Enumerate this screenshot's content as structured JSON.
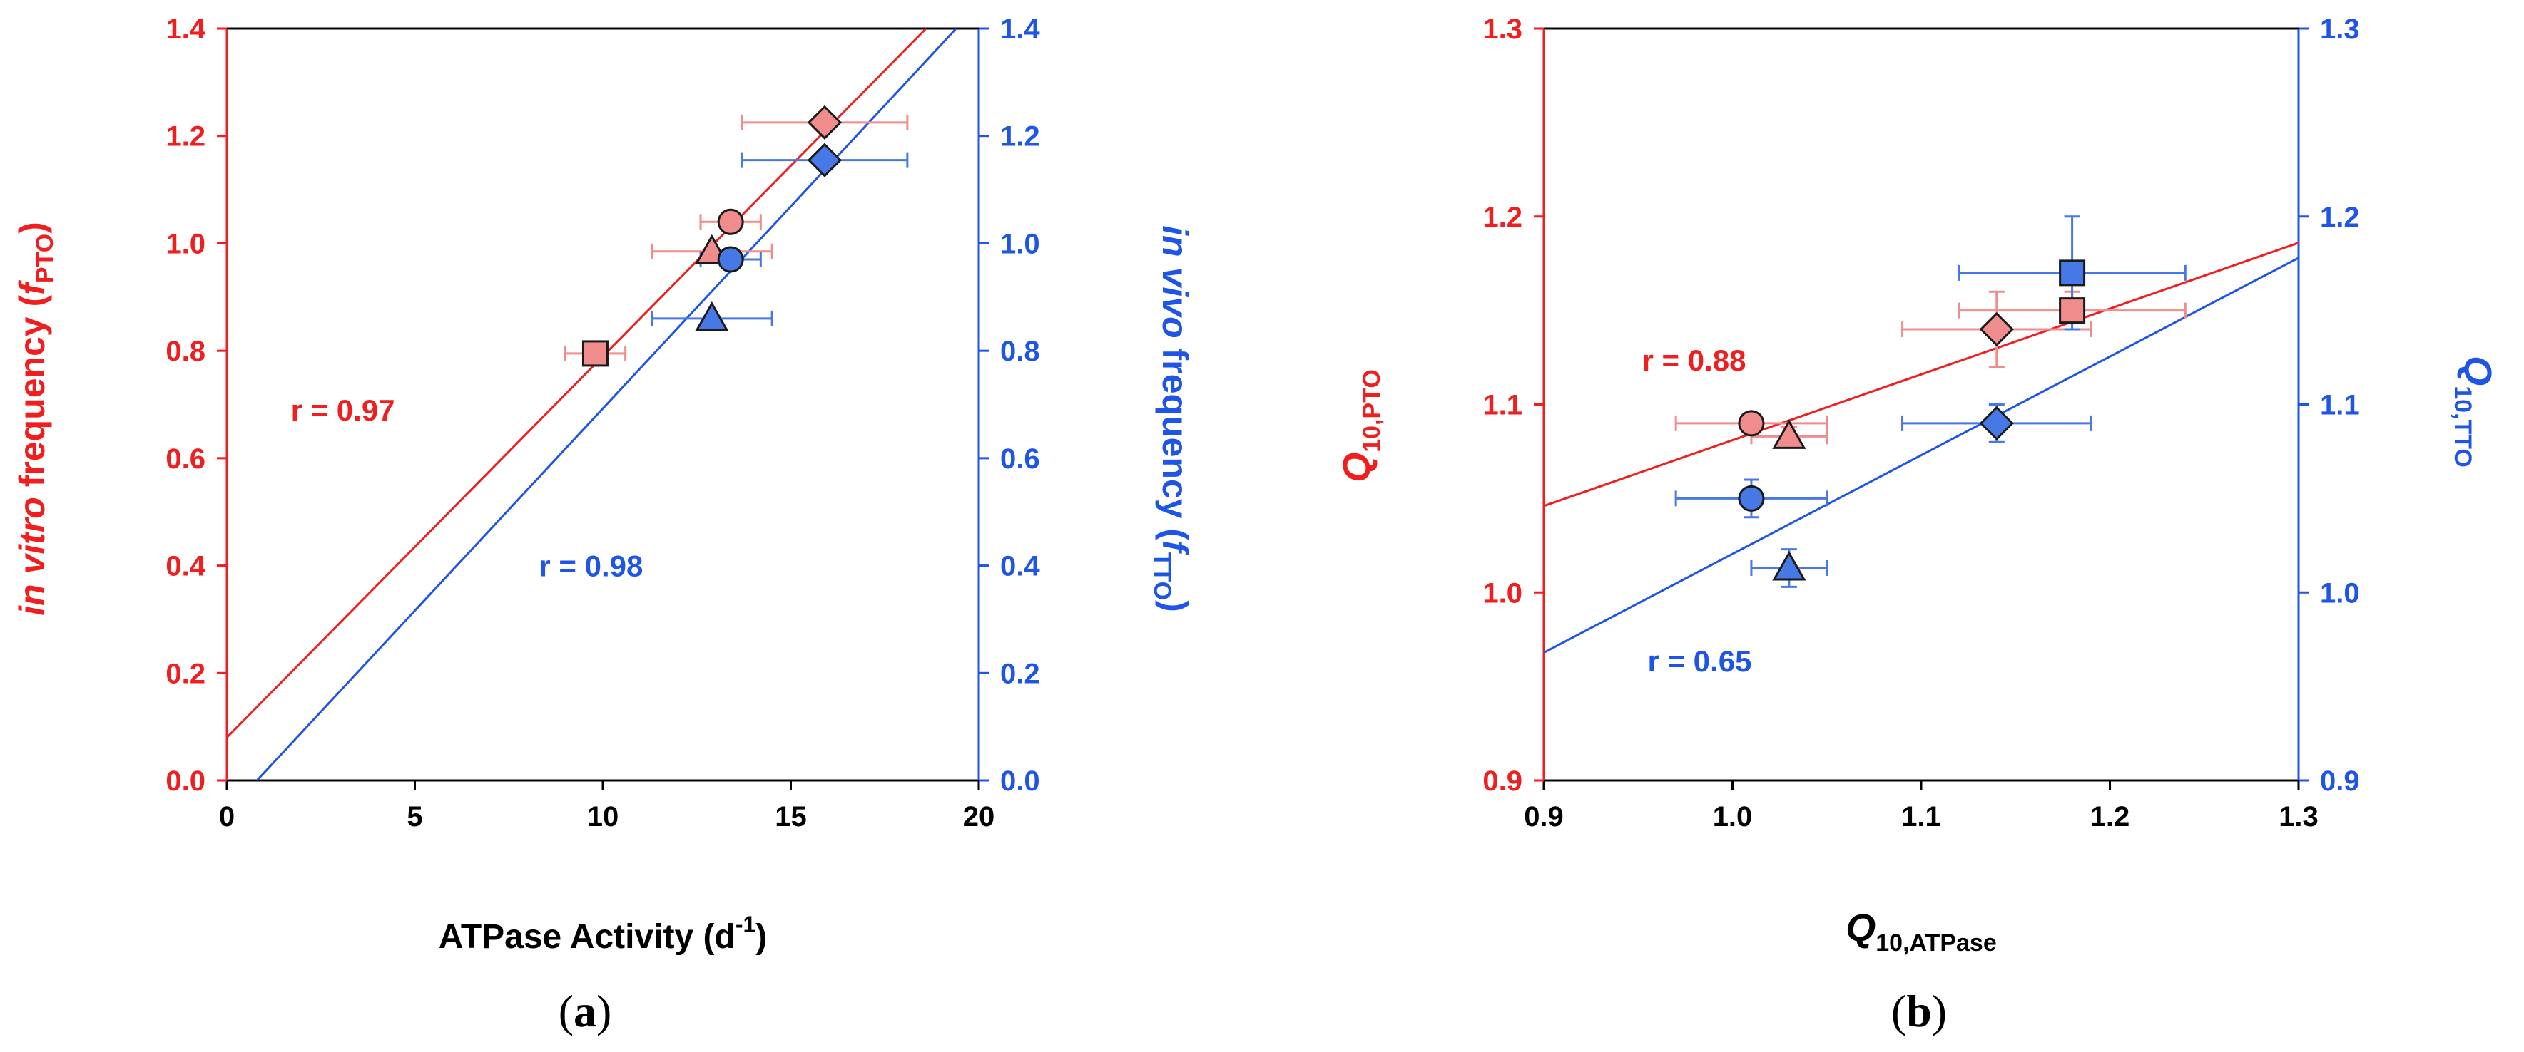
{
  "colors": {
    "red": "#f01e1e",
    "blue": "#1e55e6",
    "red_fill": "#f08c8c",
    "blue_fill": "#4678e6",
    "axis_black": "#000000"
  },
  "chart_data": [
    {
      "type": "scatter",
      "panel_label": "(a)",
      "panel_label_parts": [
        "(",
        "a",
        ")"
      ],
      "xlabel": "ATPase Activity (d",
      "xlabel_superscript": "-1",
      "xlabel_close": ")",
      "ylabel_left_parts": [
        "in vitro",
        " frequency (",
        "f",
        "PTO",
        ")"
      ],
      "ylabel_right_parts": [
        "in vivo",
        " frequency (",
        "f",
        "TTO",
        ")"
      ],
      "xlim": [
        0,
        20
      ],
      "ylim_left": [
        0.0,
        1.4
      ],
      "ylim_right": [
        0.0,
        1.4
      ],
      "x_ticks": [
        0,
        5,
        10,
        15,
        20
      ],
      "x_tick_labels": [
        "0",
        "5",
        "10",
        "15",
        "20"
      ],
      "y_ticks": [
        0.0,
        0.2,
        0.4,
        0.6,
        0.8,
        1.0,
        1.2,
        1.4
      ],
      "y_tick_labels": [
        "0.0",
        "0.2",
        "0.4",
        "0.6",
        "0.8",
        "1.0",
        "1.2",
        "1.4"
      ],
      "series": [
        {
          "name": "in vitro (PTO)",
          "color": "red",
          "points": [
            {
              "marker": "square",
              "x": 9.8,
              "y": 0.795,
              "xerr": 0.8,
              "yerr": 0
            },
            {
              "marker": "triangle",
              "x": 12.9,
              "y": 0.985,
              "xerr": 1.6,
              "yerr": 0
            },
            {
              "marker": "circle",
              "x": 13.4,
              "y": 1.04,
              "xerr": 0.8,
              "yerr": 0
            },
            {
              "marker": "diamond",
              "x": 15.9,
              "y": 1.225,
              "xerr": 2.2,
              "yerr": 0
            }
          ],
          "fit": {
            "x0": 0,
            "y0": 0.08,
            "x1": 18.6,
            "y1": 1.4
          },
          "r_label": "r = 0.97",
          "r_label_pos": {
            "x": 1.7,
            "y": 0.67
          }
        },
        {
          "name": "in vivo (TTO)",
          "color": "blue",
          "points": [
            {
              "marker": "triangle",
              "x": 12.9,
              "y": 0.86,
              "xerr": 1.6,
              "yerr": 0
            },
            {
              "marker": "circle",
              "x": 13.4,
              "y": 0.97,
              "xerr": 0.8,
              "yerr": 0
            },
            {
              "marker": "diamond",
              "x": 15.9,
              "y": 1.155,
              "xerr": 2.2,
              "yerr": 0
            }
          ],
          "fit": {
            "x0": 0.8,
            "y0": 0.0,
            "x1": 19.4,
            "y1": 1.4
          },
          "r_label": "r = 0.98",
          "r_label_pos": {
            "x": 8.3,
            "y": 0.38
          }
        }
      ]
    },
    {
      "type": "scatter",
      "panel_label": "(b)",
      "panel_label_parts": [
        "(",
        "b",
        ")"
      ],
      "xlabel_parts": [
        "Q",
        "10,ATPase"
      ],
      "ylabel_left_parts": [
        "Q",
        "10,PTO"
      ],
      "ylabel_right_parts": [
        "Q",
        "10,TTO"
      ],
      "xlim": [
        0.9,
        1.3
      ],
      "ylim_left": [
        0.9,
        1.3
      ],
      "ylim_right": [
        0.9,
        1.3
      ],
      "x_ticks": [
        0.9,
        1.0,
        1.1,
        1.2,
        1.3
      ],
      "x_tick_labels": [
        "0.9",
        "1.0",
        "1.1",
        "1.2",
        "1.3"
      ],
      "y_ticks": [
        0.9,
        1.0,
        1.1,
        1.2,
        1.3
      ],
      "y_tick_labels": [
        "0.9",
        "1.0",
        "1.1",
        "1.2",
        "1.3"
      ],
      "series": [
        {
          "name": "Q10 PTO",
          "color": "red",
          "points": [
            {
              "marker": "circle",
              "x": 1.01,
              "y": 1.09,
              "xerr": 0.04,
              "yerr": 0
            },
            {
              "marker": "triangle",
              "x": 1.03,
              "y": 1.083,
              "xerr": 0.02,
              "yerr": 0.005
            },
            {
              "marker": "diamond",
              "x": 1.14,
              "y": 1.14,
              "xerr": 0.05,
              "yerr": 0.02
            },
            {
              "marker": "square",
              "x": 1.18,
              "y": 1.15,
              "xerr": 0.06,
              "yerr": 0.01
            }
          ],
          "fit": {
            "x0": 0.9,
            "y0": 1.046,
            "x1": 1.3,
            "y1": 1.186
          },
          "r_label": "r = 0.88",
          "r_label_pos": {
            "x": 0.952,
            "y": 1.118
          }
        },
        {
          "name": "Q10 TTO",
          "color": "blue",
          "points": [
            {
              "marker": "circle",
              "x": 1.01,
              "y": 1.05,
              "xerr": 0.04,
              "yerr": 0.01
            },
            {
              "marker": "triangle",
              "x": 1.03,
              "y": 1.013,
              "xerr": 0.02,
              "yerr": 0.01
            },
            {
              "marker": "diamond",
              "x": 1.14,
              "y": 1.09,
              "xerr": 0.05,
              "yerr": 0.01
            },
            {
              "marker": "square",
              "x": 1.18,
              "y": 1.17,
              "xerr": 0.06,
              "yerr": 0.03
            }
          ],
          "fit": {
            "x0": 0.9,
            "y0": 0.968,
            "x1": 1.3,
            "y1": 1.178
          },
          "r_label": "r = 0.65",
          "r_label_pos": {
            "x": 0.955,
            "y": 0.958
          }
        }
      ]
    }
  ]
}
